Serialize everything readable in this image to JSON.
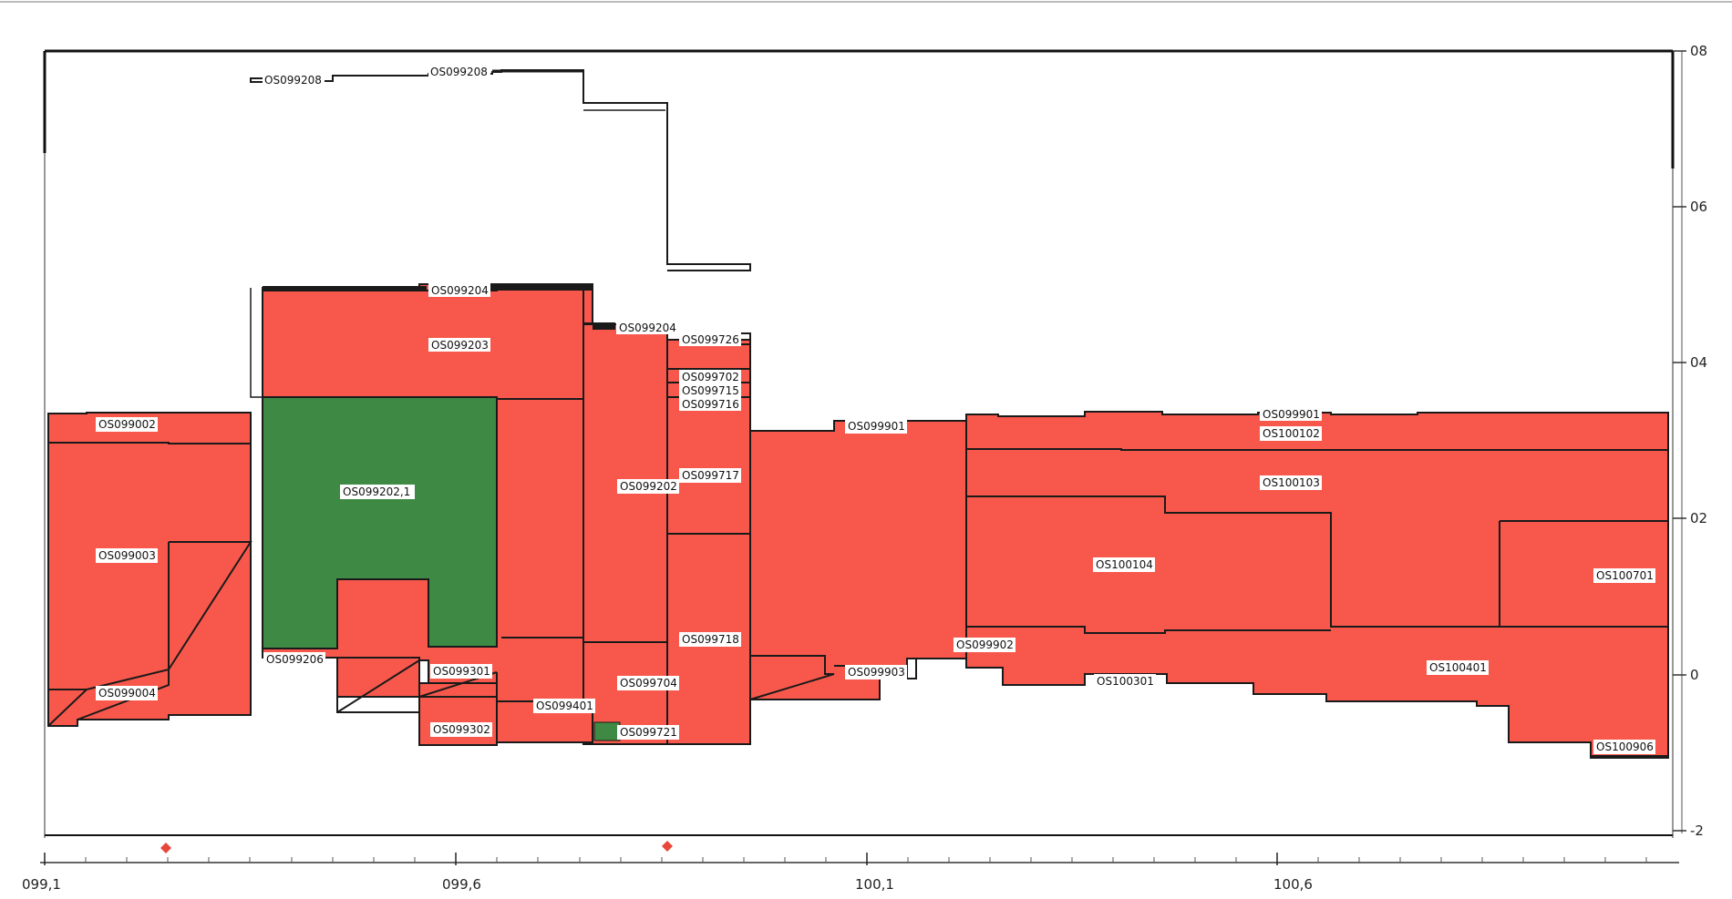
{
  "diagram": {
    "colors": {
      "region_fill": "#F8584C",
      "highlight_fill": "#3E8A45",
      "outline": "#1A1A1A",
      "label_bg": "#FFFFFF",
      "frame": "#111111"
    },
    "x_axis": {
      "ticks": [
        "099,1",
        "099,6",
        "100,1",
        "100,6"
      ]
    },
    "y_axis": {
      "ticks": [
        "08",
        "06",
        "04",
        "02",
        "0",
        "-2"
      ]
    },
    "markers": [
      "red-diamond",
      "red-diamond"
    ],
    "labels": {
      "os099208_a": "OS099208",
      "os099208_b": "OS099208",
      "os099204_a": "OS099204",
      "os099204_b": "OS099204",
      "os099203": "OS099203",
      "os099726": "OS099726",
      "os099702": "OS099702",
      "os099715": "OS099715",
      "os099716": "OS099716",
      "os099002": "OS099002",
      "os099202_1": "OS099202,1",
      "os099202": "OS099202",
      "os099717": "OS099717",
      "os099003": "OS099003",
      "os099718": "OS099718",
      "os099206": "OS099206",
      "os099301": "OS099301",
      "os099704": "OS099704",
      "os099004": "OS099004",
      "os099401": "OS099401",
      "os099302": "OS099302",
      "os099721": "OS099721",
      "os099901_a": "OS099901",
      "os099901_b": "OS099901",
      "os100102": "OS100102",
      "os100103": "OS100103",
      "os100104": "OS100104",
      "os100701": "OS100701",
      "os099902": "OS099902",
      "os099903": "OS099903",
      "os100301": "OS100301",
      "os100401": "OS100401",
      "os100906": "OS100906"
    }
  }
}
